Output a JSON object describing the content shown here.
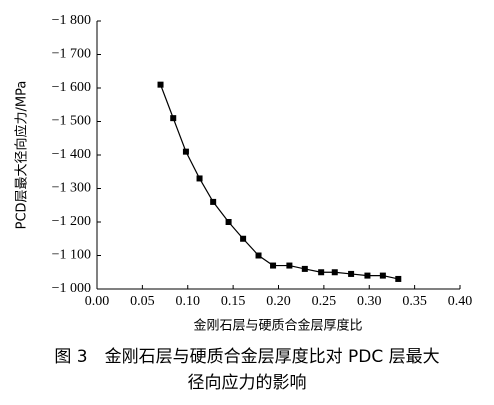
{
  "chart_data": {
    "type": "line",
    "x_label": "金刚石层与硬质合金层厚度比",
    "y_label": "PCD层最大径向应力/MPa",
    "caption": [
      "图 3　金刚石层与硬质合金层厚度比对 PDC 层最大",
      "径向应力的影响"
    ],
    "x": [
      0.07,
      0.084,
      0.098,
      0.113,
      0.128,
      0.145,
      0.161,
      0.178,
      0.194,
      0.212,
      0.229,
      0.247,
      0.262,
      0.28,
      0.298,
      0.315,
      0.332
    ],
    "series": [
      {
        "color": "#000000",
        "values": [
          -1610,
          -1510,
          -1410,
          -1330,
          -1260,
          -1200,
          -1150,
          -1100,
          -1070,
          -1070,
          -1060,
          -1050,
          -1050,
          -1045,
          -1040,
          -1040,
          -1030
        ]
      }
    ],
    "xlim": [
      0,
      0.4
    ],
    "xticks": [
      {
        "value": 0,
        "label": "0.00"
      },
      0.05,
      {
        "value": 0.1,
        "label": "0.10"
      },
      0.15,
      {
        "value": 0.2,
        "label": "0.20"
      },
      0.25,
      {
        "value": 0.3,
        "label": "0.30"
      },
      0.35,
      {
        "value": 0.4,
        "label": "0.40"
      }
    ],
    "ylim": [
      -1000,
      -1800
    ],
    "yticks": [
      {
        "value": -1000,
        "label": "−1 000"
      },
      {
        "value": -1100,
        "label": "−1 100"
      },
      {
        "value": -1200,
        "label": "−1 200"
      },
      {
        "value": -1300,
        "label": "−1 300"
      },
      {
        "value": -1400,
        "label": "−1 400"
      },
      {
        "value": -1500,
        "label": "−1 500"
      },
      {
        "value": -1600,
        "label": "−1 600"
      },
      {
        "value": -1700,
        "label": "−1 700"
      },
      {
        "value": -1800,
        "label": "−1 800"
      }
    ]
  }
}
